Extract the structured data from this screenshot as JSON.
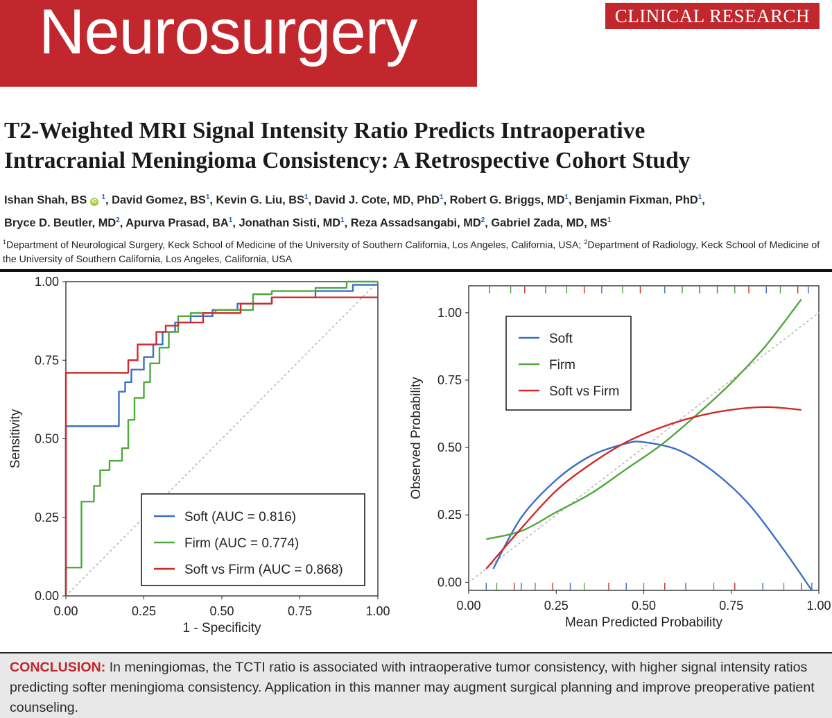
{
  "header": {
    "journal": "Neurosurgery",
    "section": "CLINICAL RESEARCH"
  },
  "article": {
    "title_line1": "T2-Weighted MRI Signal Intensity Ratio Predicts Intraoperative",
    "title_line2": "Intracranial Meningioma Consistency: A Retrospective Cohort Study",
    "authors_line1": [
      {
        "name": "Ishan Shah, BS",
        "aff": "1",
        "orcid": true
      },
      {
        "name": "David Gomez, BS",
        "aff": "1"
      },
      {
        "name": "Kevin G. Liu, BS",
        "aff": "1"
      },
      {
        "name": "David J. Cote, MD, PhD",
        "aff": "1"
      },
      {
        "name": "Robert G. Briggs, MD",
        "aff": "1"
      },
      {
        "name": "Benjamin Fixman, PhD",
        "aff": "1"
      }
    ],
    "authors_line2": [
      {
        "name": "Bryce D. Beutler, MD",
        "aff": "2"
      },
      {
        "name": "Apurva Prasad, BA",
        "aff": "1"
      },
      {
        "name": "Jonathan Sisti, MD",
        "aff": "1"
      },
      {
        "name": "Reza Assadsangabi, MD",
        "aff": "2"
      },
      {
        "name": "Gabriel Zada, MD, MS",
        "aff": "1"
      }
    ],
    "affiliations": [
      {
        "num": "1",
        "text": "Department of Neurological Surgery, Keck School of Medicine of the University of Southern California, Los Angeles, California, USA;"
      },
      {
        "num": "2",
        "text": "Department of Radiology, Keck School of Medicine of the University of Southern California, Los Angeles, California, USA"
      }
    ]
  },
  "conclusion": {
    "label": "CONCLUSION:",
    "text": "In meningiomas, the TCTI ratio is associated with intraoperative tumor consistency, with higher signal intensity ratios predicting softer meningioma consistency. Application in this manner may augment surgical planning and improve preoperative patient counseling."
  },
  "chart_data": [
    {
      "type": "line",
      "subtype": "roc",
      "xlabel": "1 - Specificity",
      "ylabel": "Sensitivity",
      "xlim": [
        0,
        1
      ],
      "ylim": [
        0,
        1
      ],
      "xticks": [
        "0.00",
        "0.25",
        "0.50",
        "0.75",
        "1.00"
      ],
      "yticks": [
        "0.00",
        "0.25",
        "0.50",
        "0.75",
        "1.00"
      ],
      "legend_position": "bottom-right",
      "reference_line": "diagonal",
      "series": [
        {
          "name": "Soft (AUC = 0.816)",
          "color": "#3a6fc4",
          "points": [
            [
              0,
              0
            ],
            [
              0,
              0.54
            ],
            [
              0.17,
              0.54
            ],
            [
              0.17,
              0.65
            ],
            [
              0.19,
              0.65
            ],
            [
              0.19,
              0.68
            ],
            [
              0.21,
              0.68
            ],
            [
              0.21,
              0.72
            ],
            [
              0.25,
              0.72
            ],
            [
              0.25,
              0.76
            ],
            [
              0.28,
              0.76
            ],
            [
              0.28,
              0.8
            ],
            [
              0.31,
              0.8
            ],
            [
              0.31,
              0.84
            ],
            [
              0.35,
              0.84
            ],
            [
              0.35,
              0.87
            ],
            [
              0.4,
              0.87
            ],
            [
              0.4,
              0.89
            ],
            [
              0.47,
              0.89
            ],
            [
              0.47,
              0.91
            ],
            [
              0.55,
              0.91
            ],
            [
              0.55,
              0.93
            ],
            [
              0.66,
              0.93
            ],
            [
              0.66,
              0.95
            ],
            [
              0.8,
              0.95
            ],
            [
              0.8,
              0.97
            ],
            [
              0.92,
              0.97
            ],
            [
              0.92,
              0.99
            ],
            [
              1,
              0.99
            ]
          ]
        },
        {
          "name": "Firm (AUC = 0.774)",
          "color": "#4ea83a",
          "points": [
            [
              0,
              0
            ],
            [
              0,
              0.09
            ],
            [
              0.05,
              0.09
            ],
            [
              0.05,
              0.3
            ],
            [
              0.09,
              0.3
            ],
            [
              0.09,
              0.35
            ],
            [
              0.11,
              0.35
            ],
            [
              0.11,
              0.4
            ],
            [
              0.14,
              0.4
            ],
            [
              0.14,
              0.43
            ],
            [
              0.18,
              0.43
            ],
            [
              0.18,
              0.47
            ],
            [
              0.2,
              0.47
            ],
            [
              0.2,
              0.56
            ],
            [
              0.22,
              0.56
            ],
            [
              0.22,
              0.63
            ],
            [
              0.25,
              0.63
            ],
            [
              0.25,
              0.68
            ],
            [
              0.27,
              0.68
            ],
            [
              0.27,
              0.74
            ],
            [
              0.3,
              0.74
            ],
            [
              0.3,
              0.79
            ],
            [
              0.33,
              0.79
            ],
            [
              0.33,
              0.84
            ],
            [
              0.36,
              0.84
            ],
            [
              0.36,
              0.89
            ],
            [
              0.4,
              0.89
            ],
            [
              0.4,
              0.9
            ],
            [
              0.48,
              0.9
            ],
            [
              0.48,
              0.91
            ],
            [
              0.6,
              0.91
            ],
            [
              0.6,
              0.96
            ],
            [
              0.66,
              0.96
            ],
            [
              0.66,
              0.97
            ],
            [
              0.8,
              0.97
            ],
            [
              0.8,
              0.98
            ],
            [
              0.9,
              0.98
            ],
            [
              0.9,
              1.0
            ],
            [
              1,
              1.0
            ]
          ]
        },
        {
          "name": "Soft vs Firm (AUC = 0.868)",
          "color": "#d02a2a",
          "points": [
            [
              0,
              0
            ],
            [
              0,
              0.71
            ],
            [
              0.2,
              0.71
            ],
            [
              0.2,
              0.75
            ],
            [
              0.23,
              0.75
            ],
            [
              0.23,
              0.8
            ],
            [
              0.29,
              0.8
            ],
            [
              0.29,
              0.84
            ],
            [
              0.32,
              0.84
            ],
            [
              0.32,
              0.86
            ],
            [
              0.36,
              0.86
            ],
            [
              0.36,
              0.87
            ],
            [
              0.44,
              0.87
            ],
            [
              0.44,
              0.9
            ],
            [
              0.56,
              0.9
            ],
            [
              0.56,
              0.93
            ],
            [
              0.66,
              0.93
            ],
            [
              0.66,
              0.95
            ],
            [
              1,
              0.95
            ]
          ]
        }
      ]
    },
    {
      "type": "line",
      "subtype": "calibration",
      "xlabel": "Mean Predicted Probability",
      "ylabel": "Observed Probability",
      "xlim": [
        0,
        1
      ],
      "ylim": [
        -0.03,
        1.1
      ],
      "xticks": [
        "0.00",
        "0.25",
        "0.50",
        "0.75",
        "1.00"
      ],
      "yticks": [
        "0.00",
        "0.25",
        "0.50",
        "0.75",
        "1.00"
      ],
      "legend_position": "top-left",
      "reference_line": "diagonal",
      "series": [
        {
          "name": "Soft",
          "color": "#3a6fc4",
          "points": [
            [
              0.07,
              0.05
            ],
            [
              0.15,
              0.24
            ],
            [
              0.25,
              0.38
            ],
            [
              0.35,
              0.47
            ],
            [
              0.45,
              0.515
            ],
            [
              0.5,
              0.52
            ],
            [
              0.6,
              0.49
            ],
            [
              0.7,
              0.41
            ],
            [
              0.8,
              0.29
            ],
            [
              0.9,
              0.12
            ],
            [
              0.98,
              -0.03
            ]
          ]
        },
        {
          "name": "Firm",
          "color": "#4ea83a",
          "points": [
            [
              0.05,
              0.16
            ],
            [
              0.15,
              0.19
            ],
            [
              0.25,
              0.26
            ],
            [
              0.35,
              0.33
            ],
            [
              0.45,
              0.42
            ],
            [
              0.55,
              0.51
            ],
            [
              0.65,
              0.62
            ],
            [
              0.75,
              0.74
            ],
            [
              0.85,
              0.88
            ],
            [
              0.95,
              1.05
            ]
          ]
        },
        {
          "name": "Soft vs Firm",
          "color": "#d02a2a",
          "points": [
            [
              0.05,
              0.05
            ],
            [
              0.15,
              0.2
            ],
            [
              0.25,
              0.34
            ],
            [
              0.35,
              0.44
            ],
            [
              0.45,
              0.52
            ],
            [
              0.55,
              0.575
            ],
            [
              0.65,
              0.615
            ],
            [
              0.75,
              0.64
            ],
            [
              0.85,
              0.65
            ],
            [
              0.95,
              0.64
            ]
          ]
        }
      ],
      "rug_top": [
        0.06,
        0.12,
        0.16,
        0.22,
        0.28,
        0.33,
        0.38,
        0.44,
        0.49,
        0.56,
        0.61,
        0.66,
        0.71,
        0.76,
        0.8,
        0.85,
        0.89,
        0.94,
        0.97
      ],
      "rug_bottom": [
        0.05,
        0.08,
        0.13,
        0.15,
        0.19,
        0.24,
        0.29,
        0.33,
        0.4,
        0.45,
        0.5,
        0.56,
        0.62,
        0.7,
        0.76,
        0.84,
        0.9,
        0.95,
        0.98
      ]
    }
  ]
}
